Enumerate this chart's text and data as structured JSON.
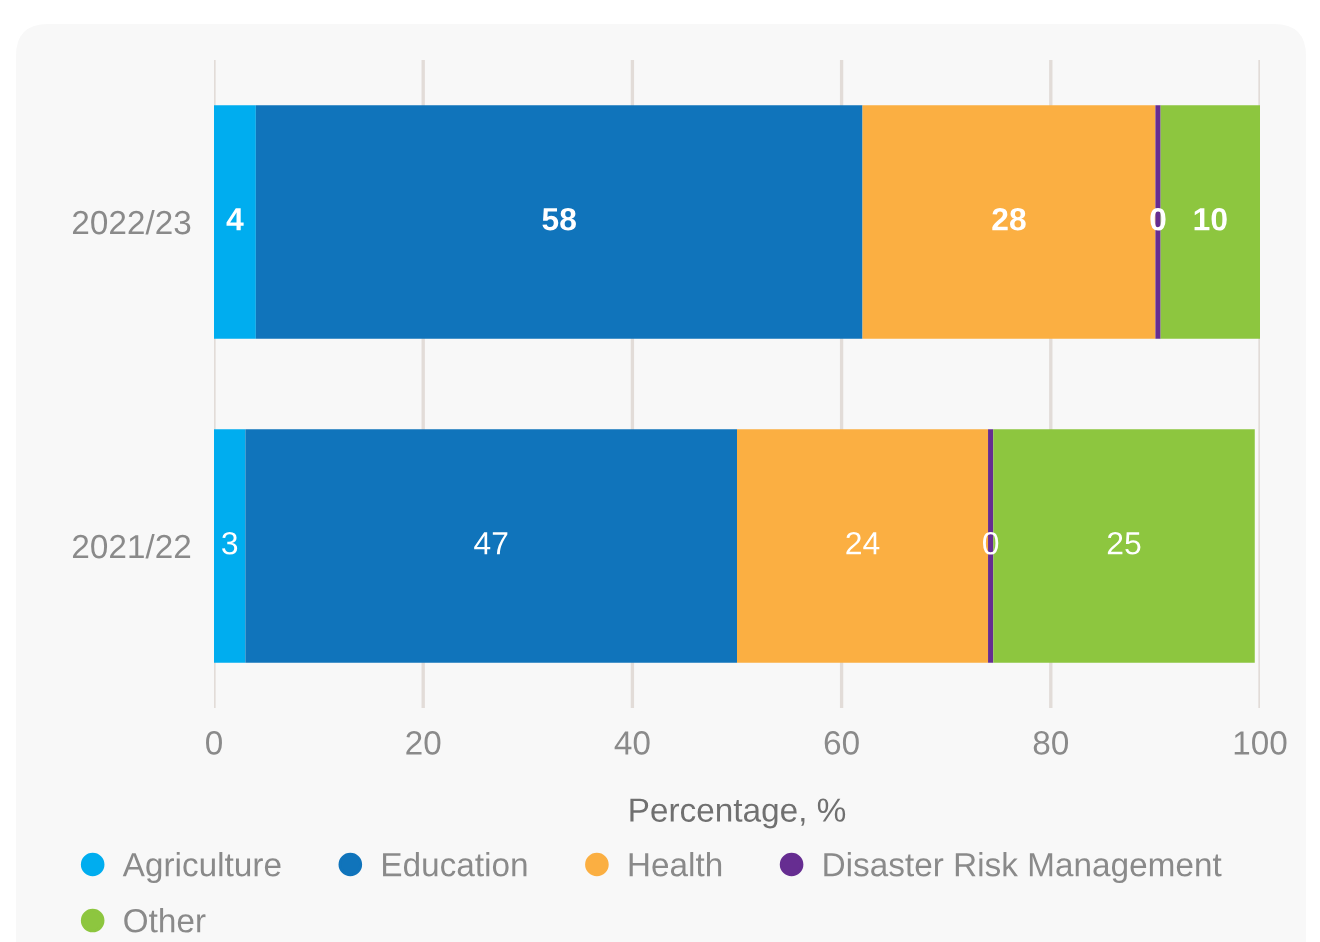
{
  "chart_data": {
    "type": "bar",
    "orientation": "horizontal",
    "stacked": true,
    "categories": [
      "2022/23",
      "2021/22"
    ],
    "series": [
      {
        "name": "Agriculture",
        "color": "#00adef",
        "values": [
          4,
          3
        ],
        "value_labels": [
          "4",
          "3"
        ]
      },
      {
        "name": "Education",
        "color": "#1074bb",
        "values": [
          58,
          47
        ],
        "value_labels": [
          "58",
          "47"
        ]
      },
      {
        "name": "Health",
        "color": "#fbaf42",
        "values": [
          28,
          24
        ],
        "value_labels": [
          "28",
          "24"
        ]
      },
      {
        "name": "Disaster Risk Management",
        "color": "#662d91",
        "values": [
          0.5,
          0.5
        ],
        "value_labels": [
          "0",
          "0"
        ]
      },
      {
        "name": "Other",
        "color": "#8dc63f",
        "values": [
          9.5,
          25
        ],
        "value_labels": [
          "10",
          "25"
        ]
      }
    ],
    "xlabel": "Percentage, %",
    "xlim": [
      0,
      100
    ],
    "xticks": [
      0,
      20,
      40,
      60,
      80,
      100
    ],
    "grid": "x",
    "legend": "bottom"
  }
}
